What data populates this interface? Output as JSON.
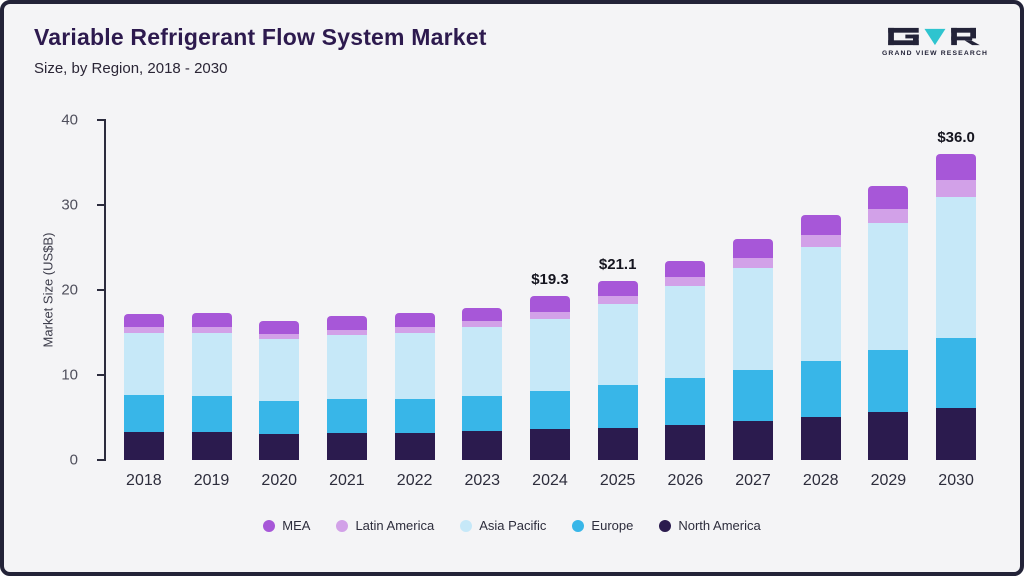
{
  "header": {
    "title": "Variable Refrigerant Flow System Market",
    "subtitle": "Size, by Region, 2018 - 2030",
    "brand": "GRAND VIEW RESEARCH"
  },
  "y_axis": {
    "label": "Market Size (US$B)"
  },
  "chart_data": {
    "type": "bar",
    "stacked": true,
    "title": "Variable Refrigerant Flow System Market",
    "subtitle": "Size, by Region, 2018 - 2030",
    "ylabel": "Market Size (US$B)",
    "xlabel": "",
    "ylim": [
      0,
      40
    ],
    "yticks": [
      0,
      10,
      20,
      30,
      40
    ],
    "grid": false,
    "legend_position": "bottom",
    "stack_order": "bottom-to-top",
    "categories": [
      "2018",
      "2019",
      "2020",
      "2021",
      "2022",
      "2023",
      "2024",
      "2025",
      "2026",
      "2027",
      "2028",
      "2029",
      "2030"
    ],
    "series": [
      {
        "name": "North America",
        "color": "#2b1b4e",
        "values": [
          3.3,
          3.3,
          3.1,
          3.2,
          3.2,
          3.4,
          3.6,
          3.8,
          4.1,
          4.6,
          5.1,
          5.6,
          6.1
        ]
      },
      {
        "name": "Europe",
        "color": "#38b6e8",
        "values": [
          4.3,
          4.2,
          3.9,
          4.0,
          4.0,
          4.1,
          4.5,
          5.0,
          5.5,
          6.0,
          6.6,
          7.4,
          8.3
        ]
      },
      {
        "name": "Asia Pacific",
        "color": "#c6e8f8",
        "values": [
          7.4,
          7.5,
          7.2,
          7.5,
          7.8,
          8.1,
          8.5,
          9.6,
          10.9,
          12.0,
          13.4,
          14.9,
          16.6
        ]
      },
      {
        "name": "Latin America",
        "color": "#d2a1e8",
        "values": [
          0.6,
          0.6,
          0.6,
          0.6,
          0.7,
          0.7,
          0.8,
          0.9,
          1.0,
          1.2,
          1.4,
          1.6,
          1.9
        ]
      },
      {
        "name": "MEA",
        "color": "#a757d8",
        "values": [
          1.6,
          1.7,
          1.6,
          1.6,
          1.6,
          1.6,
          1.9,
          1.8,
          1.9,
          2.2,
          2.3,
          2.7,
          3.1
        ]
      }
    ],
    "totals": [
      17.2,
      17.3,
      16.4,
      16.9,
      17.3,
      17.9,
      19.3,
      21.1,
      23.4,
      26.0,
      28.8,
      32.2,
      36.0
    ],
    "legend": [
      "MEA",
      "Latin America",
      "Asia Pacific",
      "Europe",
      "North America"
    ],
    "annotations": [
      {
        "category": "2024",
        "text": "$19.3"
      },
      {
        "category": "2025",
        "text": "$21.1"
      },
      {
        "category": "2030",
        "text": "$36.0"
      }
    ]
  },
  "colors": {
    "background": "#f4f4f6",
    "frame": "#232338",
    "title": "#2d1a4e",
    "axis": "#2b2b3d",
    "tick_text": "#4f4f5c",
    "annotation_text": "#15151f",
    "logo_dark": "#232338",
    "logo_teal": "#2ec4cf"
  }
}
